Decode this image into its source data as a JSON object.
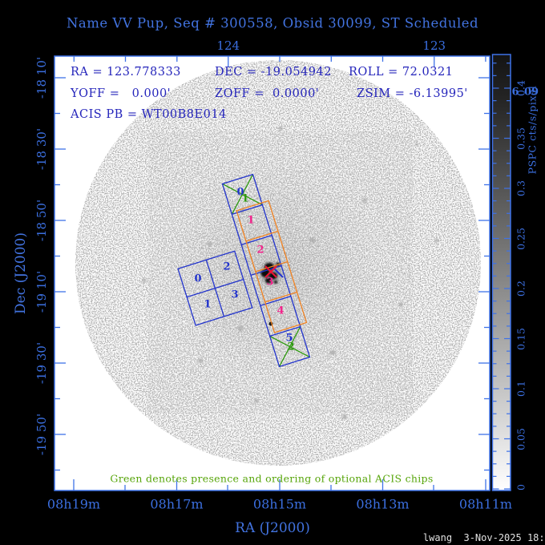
{
  "title": "Name VV Pup, Seq # 300558, Obsid 30099, ST Scheduled",
  "header": {
    "ra": "RA = 123.778333",
    "dec": "DEC = -19.054942",
    "roll": "ROLL = 72.0321",
    "yoff": "YOFF =   0.000'",
    "zoff": "ZOFF =  0.0000'",
    "zsim": "ZSIM = -6.13995'",
    "acis_pb": "ACIS PB = WT00B8E014"
  },
  "axes": {
    "x_label": "RA (J2000)",
    "y_label": "Dec (J2000)",
    "x_ticks": [
      "08h19m",
      "08h17m",
      "08h15m",
      "08h13m",
      "08h11m"
    ],
    "top_ticks": [
      "124",
      "123"
    ],
    "y_ticks": [
      "-18 10'",
      "-18 30'",
      "-18 50'",
      "-19 10'",
      "-19 30'",
      "-19 50'"
    ]
  },
  "colorbar": {
    "title": "PSPC cts/s/pixel",
    "ticks": [
      "0.4",
      "0.35",
      "0.3",
      "0.25",
      "0.2",
      "0.15",
      "0.1",
      "0.05",
      "0"
    ],
    "overflow": [
      "6",
      "09"
    ]
  },
  "chips": {
    "acis_s": [
      "0",
      "1",
      "2",
      "3",
      "4",
      "5"
    ],
    "optional_order": [
      "1",
      "2"
    ],
    "acis_i": [
      "0",
      "1",
      "2",
      "3"
    ]
  },
  "caption": "Green denotes presence and ordering of optional ACIS chips",
  "credit": "lwang  3-Nov-2025 18:50",
  "colors": {
    "title_blue": "#4273E0",
    "header_blue": "#2525BB",
    "axis_blue": "#3B6FE0",
    "chip_blue": "#2233CC",
    "chip_orange": "#F08222",
    "chip_green": "#2E9A10",
    "chip_magenta": "#F2258C",
    "marker_red": "#EE1133",
    "caption_green": "#57A50A",
    "credit_white": "#E2E2E2"
  }
}
